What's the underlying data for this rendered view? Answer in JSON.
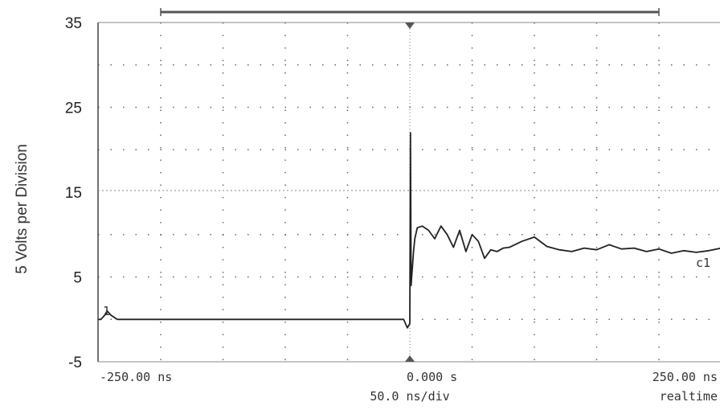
{
  "chart_data": {
    "type": "line",
    "ylabel": "5 Volts per Division",
    "ylim": [
      -5,
      35
    ],
    "yticks": [
      "35",
      "25",
      "15",
      "5",
      "-5"
    ],
    "xlim": [
      -250,
      250
    ],
    "x_unit": "ns",
    "x_tick_labels": [
      "-250.00 ns",
      "0.000  s",
      "250.00 ns"
    ],
    "timebase": "50.0 ns/div",
    "acquisition": "realtime",
    "grid": true,
    "reference_level": 15,
    "series": [
      {
        "name": "c1",
        "x": [
          -250,
          -248,
          -245,
          -243,
          -240,
          -235,
          -200,
          -100,
          -5,
          -2,
          0,
          0.5,
          1,
          1.5,
          2,
          3,
          4,
          6,
          10,
          15,
          20,
          25,
          30,
          35,
          40,
          45,
          50,
          55,
          60,
          65,
          70,
          75,
          80,
          90,
          100,
          110,
          120,
          130,
          140,
          150,
          160,
          170,
          180,
          190,
          200,
          210,
          220,
          230,
          240,
          250
        ],
        "values": [
          0,
          0,
          0.5,
          1,
          0.5,
          0,
          0,
          0,
          0,
          -1,
          -0.5,
          22,
          4,
          5,
          6,
          8,
          9.5,
          10.8,
          11,
          10.5,
          9.5,
          11,
          10,
          8.5,
          10.5,
          8,
          10,
          9.2,
          7.2,
          8.2,
          8,
          8.4,
          8.5,
          9.2,
          9.7,
          8.6,
          8.2,
          8,
          8.4,
          8.2,
          8.8,
          8.3,
          8.4,
          8,
          8.3,
          7.8,
          8.1,
          7.9,
          8.1,
          8.4
        ]
      }
    ],
    "channel_marker": "1",
    "series_label": "c1"
  }
}
